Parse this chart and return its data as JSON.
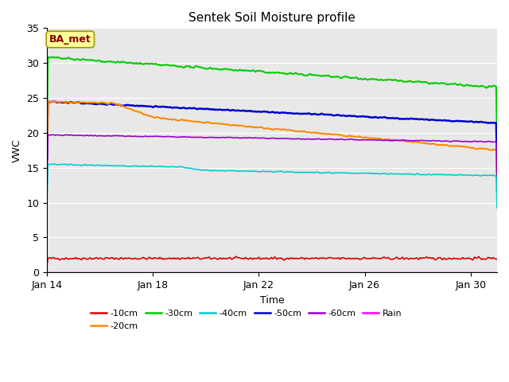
{
  "title": "Sentek Soil Moisture profile",
  "xlabel": "Time",
  "ylabel": "VWC",
  "annotation_text": "BA_met",
  "xlim_days": [
    0,
    17
  ],
  "ylim": [
    0,
    35
  ],
  "yticks": [
    0,
    5,
    10,
    15,
    20,
    25,
    30,
    35
  ],
  "xtick_labels": [
    "Jan 14",
    "Jan 18",
    "Jan 22",
    "Jan 26",
    "Jan 30"
  ],
  "xtick_positions": [
    0,
    4,
    8,
    12,
    16
  ],
  "plot_bg_color": "#e8e8e8",
  "fig_bg_color": "#ffffff",
  "series": {
    "-10cm": {
      "color": "#dd0000"
    },
    "-20cm": {
      "color": "#ff8800"
    },
    "-30cm": {
      "color": "#00cc00"
    },
    "-40cm": {
      "color": "#00cccc"
    },
    "-50cm": {
      "color": "#0000cc"
    },
    "-60cm": {
      "color": "#9900cc"
    },
    "Rain": {
      "color": "#ff00ff"
    }
  },
  "legend_order": [
    "-10cm",
    "-20cm",
    "-30cm",
    "-40cm",
    "-50cm",
    "-60cm",
    "Rain"
  ],
  "legend_ncol_row1": 6,
  "grid_color": "#ffffff",
  "annotation_box_facecolor": "#ffff99",
  "annotation_text_color": "#8b0000",
  "annotation_border_color": "#999900",
  "title_fontsize": 11,
  "axis_label_fontsize": 9,
  "tick_fontsize": 9,
  "legend_fontsize": 8
}
